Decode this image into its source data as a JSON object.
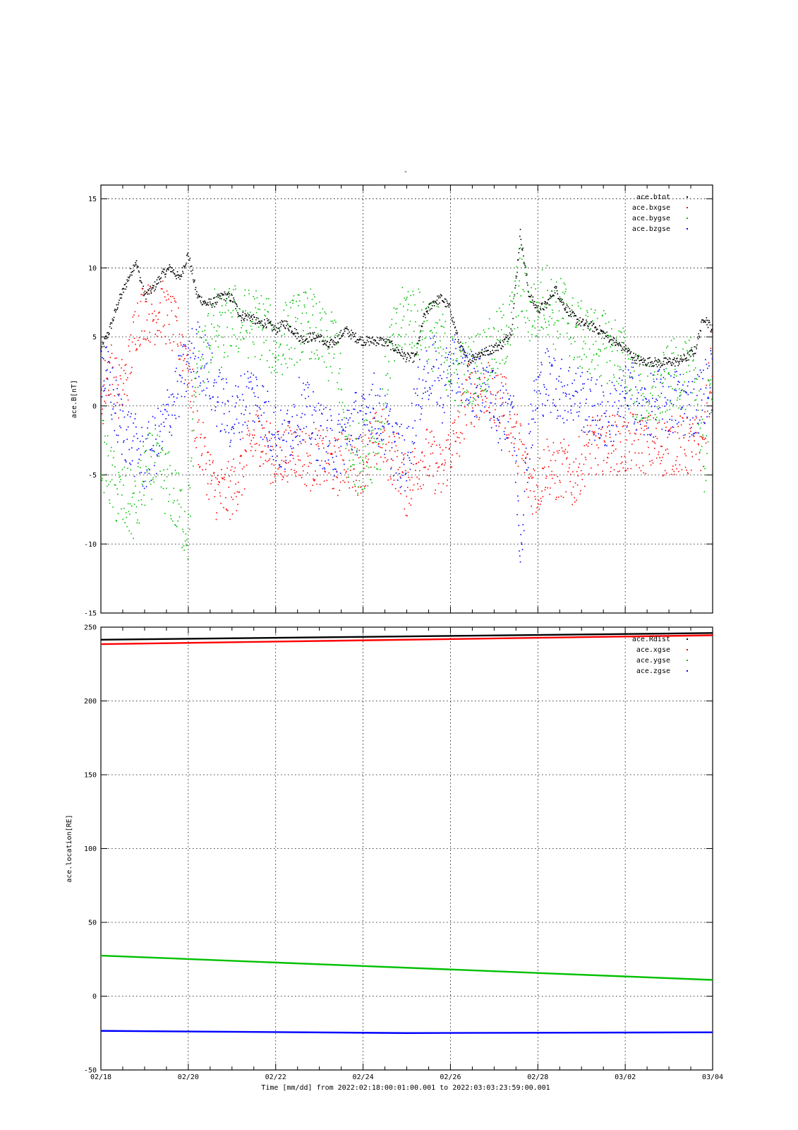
{
  "title": "-",
  "xaxis": {
    "label": "Time [mm/dd]  from 2022:02:18:00:01:00.001  to  2022:03:03:23:59:00.001",
    "ticks": [
      "02/18",
      "02/20",
      "02/22",
      "02/24",
      "02/26",
      "02/28",
      "03/02",
      "03/04"
    ],
    "range_days": [
      0,
      14
    ]
  },
  "chart_data": [
    {
      "type": "scatter",
      "title": "",
      "ylabel": "ace.B[nT]",
      "ylim": [
        -15,
        16
      ],
      "yticks": [
        -15,
        -10,
        -5,
        0,
        5,
        10,
        15
      ],
      "ytick_labels": [
        "-15",
        "-10",
        "-5",
        "0",
        "5",
        "10",
        "15"
      ],
      "x_units": "days since 02/18",
      "grid": true,
      "legend_position": "top-right",
      "series": [
        {
          "name": "ace.btot",
          "color": "#000000",
          "x": [
            0,
            0.2,
            0.4,
            0.6,
            0.8,
            1.0,
            1.2,
            1.4,
            1.6,
            1.8,
            2.0,
            2.2,
            2.4,
            2.6,
            2.8,
            3.0,
            3.2,
            3.4,
            3.6,
            3.8,
            4.0,
            4.2,
            4.4,
            4.6,
            4.8,
            5.0,
            5.2,
            5.4,
            5.6,
            5.8,
            6.0,
            6.2,
            6.4,
            6.6,
            6.8,
            7.0,
            7.2,
            7.4,
            7.6,
            7.8,
            8.0,
            8.2,
            8.4,
            8.6,
            8.8,
            9.0,
            9.2,
            9.4,
            9.6,
            9.8,
            10.0,
            10.2,
            10.4,
            10.6,
            10.8,
            11.0,
            11.2,
            11.4,
            11.6,
            11.8,
            12.0,
            12.2,
            12.4,
            12.6,
            12.8,
            13.0,
            13.2,
            13.4,
            13.6,
            13.8,
            14.0
          ],
          "y": [
            4,
            5.5,
            7.5,
            9,
            10.5,
            8,
            8.5,
            9.5,
            10,
            9.2,
            11,
            8,
            7.4,
            7.5,
            8,
            7.8,
            6.5,
            6.5,
            6,
            6,
            5.5,
            6,
            5.5,
            4.8,
            5,
            5,
            4.3,
            4.8,
            5.5,
            5,
            4.7,
            4.7,
            4.7,
            4.5,
            4,
            3.5,
            3.5,
            6.5,
            7.5,
            7.8,
            7,
            4.5,
            3.2,
            3.7,
            3.9,
            4.2,
            4.5,
            5.5,
            12.5,
            8,
            7,
            7.3,
            8.5,
            7.3,
            6.5,
            6,
            5.8,
            5.5,
            5,
            4.5,
            4.2,
            3.5,
            3.2,
            3.2,
            3.1,
            3.2,
            3.2,
            3.5,
            4,
            6.5,
            5.5
          ]
        },
        {
          "name": "ace.bxgse",
          "color": "#ff0000",
          "x": [
            0,
            0.2,
            0.4,
            0.6,
            0.8,
            1.0,
            1.2,
            1.4,
            1.6,
            1.8,
            2.0,
            2.2,
            2.4,
            2.6,
            2.8,
            3.0,
            3.2,
            3.4,
            3.6,
            3.8,
            4.0,
            4.2,
            4.4,
            4.6,
            4.8,
            5.0,
            5.2,
            5.4,
            5.6,
            5.8,
            6.0,
            6.2,
            6.4,
            6.6,
            6.8,
            7.0,
            7.2,
            7.4,
            7.6,
            7.8,
            8.0,
            8.2,
            8.4,
            8.6,
            8.8,
            9.0,
            9.2,
            9.4,
            9.6,
            9.8,
            10.0,
            10.2,
            10.4,
            10.6,
            10.8,
            11.0,
            11.2,
            11.4,
            11.6,
            11.8,
            12.0,
            12.2,
            12.4,
            12.6,
            12.8,
            13.0,
            13.2,
            13.4,
            13.6,
            13.8,
            14.0
          ],
          "y": [
            0,
            3,
            1,
            2,
            6,
            7,
            6.5,
            7,
            6,
            5,
            3,
            -2,
            -4,
            -6,
            -6.5,
            -6,
            -5,
            -3,
            -2,
            -3,
            -4,
            -3.5,
            -3,
            -3.5,
            -4,
            -3.5,
            -4,
            -4.5,
            -3.5,
            -4.5,
            -4,
            -3,
            -2,
            -3.5,
            -4,
            -6,
            -4.5,
            -3.5,
            -4,
            -5,
            -3,
            -2,
            1,
            0.5,
            1.5,
            0,
            1,
            -2,
            -3,
            -5.5,
            -6,
            -4,
            -5,
            -4.5,
            -5.5,
            -4,
            -3,
            -3,
            -2.5,
            -2.8,
            -3,
            -2.5,
            -2.8,
            -2.7,
            -3,
            -3,
            -2.7,
            -3,
            -3,
            -2.5,
            4
          ]
        },
        {
          "name": "ace.bygse",
          "color": "#00c000",
          "x": [
            0,
            0.2,
            0.4,
            0.6,
            0.8,
            1.0,
            1.2,
            1.4,
            1.6,
            1.8,
            2.0,
            2.2,
            2.4,
            2.6,
            2.8,
            3.0,
            3.2,
            3.4,
            3.6,
            3.8,
            4.0,
            4.2,
            4.4,
            4.6,
            4.8,
            5.0,
            5.2,
            5.4,
            5.6,
            5.8,
            6.0,
            6.2,
            6.4,
            6.6,
            6.8,
            7.0,
            7.2,
            7.4,
            7.6,
            7.8,
            8.0,
            8.2,
            8.4,
            8.6,
            8.8,
            9.0,
            9.2,
            9.4,
            9.6,
            9.8,
            10.0,
            10.2,
            10.4,
            10.6,
            10.8,
            11.0,
            11.2,
            11.4,
            11.6,
            11.8,
            12.0,
            12.2,
            12.4,
            12.6,
            12.8,
            13.0,
            13.2,
            13.4,
            13.6,
            13.8,
            14.0
          ],
          "y": [
            -3,
            -5,
            -6.5,
            -7,
            -7.5,
            -5,
            -4,
            -5,
            -6,
            -7.5,
            -9,
            3,
            4,
            6,
            5,
            6.5,
            6,
            6,
            6,
            5.5,
            4,
            5,
            5.5,
            5.8,
            6,
            5,
            4,
            4.5,
            -3,
            -4,
            -3.5,
            -3,
            -2,
            4,
            5,
            7,
            6,
            6,
            5,
            4.5,
            3,
            2,
            2.5,
            3,
            3.5,
            4,
            5,
            6,
            9,
            7,
            7,
            8,
            6.5,
            7,
            5.5,
            5,
            4.8,
            4.5,
            4.2,
            4,
            3,
            1.5,
            1,
            0.5,
            1,
            2,
            2.5,
            2,
            3,
            -5,
            3
          ]
        },
        {
          "name": "ace.bzgse",
          "color": "#0000ff",
          "x": [
            0,
            0.2,
            0.4,
            0.6,
            0.8,
            1.0,
            1.2,
            1.4,
            1.6,
            1.8,
            2.0,
            2.2,
            2.4,
            2.6,
            2.8,
            3.0,
            3.2,
            3.4,
            3.6,
            3.8,
            4.0,
            4.2,
            4.4,
            4.6,
            4.8,
            5.0,
            5.2,
            5.4,
            5.6,
            5.8,
            6.0,
            6.2,
            6.4,
            6.6,
            6.8,
            7.0,
            7.2,
            7.4,
            7.6,
            7.8,
            8.0,
            8.2,
            8.4,
            8.6,
            8.8,
            9.0,
            9.2,
            9.4,
            9.6,
            9.8,
            10.0,
            10.2,
            10.4,
            10.6,
            10.8,
            11.0,
            11.2,
            11.4,
            11.6,
            11.8,
            12.0,
            12.2,
            12.4,
            12.6,
            12.8,
            13.0,
            13.2,
            13.4,
            13.6,
            13.8,
            14.0
          ],
          "y": [
            3,
            1.5,
            -1,
            -2,
            -3,
            -4,
            -3,
            -2,
            0,
            1.5,
            3,
            4,
            3,
            1,
            0,
            -1,
            0,
            1,
            0.5,
            -1,
            -2,
            -3,
            -1,
            0,
            -1,
            -2,
            -2.5,
            -3,
            -2,
            -1,
            -1.5,
            0.5,
            -1,
            -2,
            -3.5,
            -4,
            0,
            2,
            3,
            1,
            3,
            2.5,
            2,
            1.5,
            2,
            0,
            -1,
            1,
            -10,
            -2,
            1,
            2,
            1.5,
            1,
            1,
            0.5,
            0,
            -0.5,
            -1,
            0,
            0.5,
            1,
            -0.5,
            0,
            0.5,
            0,
            0.5,
            0,
            0,
            1,
            2
          ]
        }
      ]
    },
    {
      "type": "line",
      "title": "",
      "ylabel": "ace.location[RE]",
      "ylim": [
        -50,
        250
      ],
      "yticks": [
        -50,
        0,
        50,
        100,
        150,
        200,
        250
      ],
      "ytick_labels": [
        "-50",
        "0",
        "50",
        "100",
        "150",
        "200",
        "250"
      ],
      "x_units": "days since 02/18",
      "grid": true,
      "legend_position": "top-right",
      "series": [
        {
          "name": "ace.Rdist",
          "color": "#000000",
          "x": [
            0,
            14
          ],
          "y": [
            241.5,
            246
          ]
        },
        {
          "name": "ace.xgse",
          "color": "#ff0000",
          "x": [
            0,
            14
          ],
          "y": [
            238.5,
            244.5
          ]
        },
        {
          "name": "ace.ygse",
          "color": "#00c000",
          "x": [
            0,
            14
          ],
          "y": [
            27.5,
            11
          ]
        },
        {
          "name": "ace.zgse",
          "color": "#0000ff",
          "x": [
            0,
            7,
            14
          ],
          "y": [
            -23.5,
            -25,
            -24.5
          ]
        }
      ]
    }
  ]
}
